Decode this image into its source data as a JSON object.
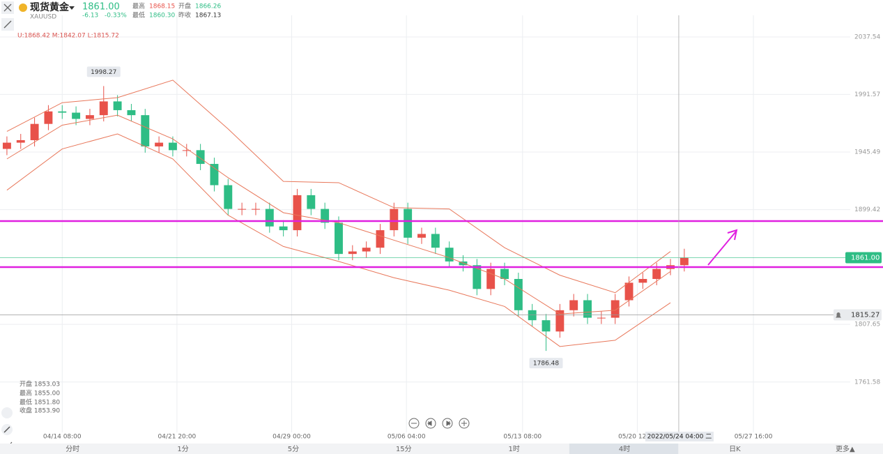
{
  "header": {
    "name": "现货黄金",
    "symbol": "XAUUSD",
    "price": "1861.00",
    "change": "-6.13",
    "change_pct": "-0.33%",
    "stats": [
      {
        "label": "最高",
        "value": "1868.15"
      },
      {
        "label": "开盘",
        "value": "1866.26"
      },
      {
        "label": "最低",
        "value": "1860.30"
      },
      {
        "label": "昨收",
        "value": "1867.13"
      }
    ]
  },
  "indicator": "U:1868.42 M:1842.07 L:1815.72",
  "ohlc_panel": [
    "开盘 1853.03",
    "最高 1855.00",
    "最低 1851.80",
    "收盘 1853.90"
  ],
  "tabs": [
    "分时",
    "1分",
    "5分",
    "15分",
    "1时",
    "4时",
    "日K",
    "更多▲"
  ],
  "active_tab": 5,
  "chart_data": {
    "type": "candlestick",
    "xlim": [
      -0.5,
      60.5
    ],
    "xticks": [
      {
        "value": 4,
        "label": "04/14 08:00"
      },
      {
        "value": 12.3,
        "label": "04/21 20:00"
      },
      {
        "value": 20.6,
        "label": "04/29 00:00"
      },
      {
        "value": 28.9,
        "label": "05/06 04:00"
      },
      {
        "value": 37.3,
        "label": "05/13 08:00"
      },
      {
        "value": 45.6,
        "label": "05/20 12:00"
      },
      {
        "value": 54,
        "label": "05/27 16:00"
      }
    ],
    "ylim": [
      1721.3,
      2054.83
    ],
    "yticks": [
      2037.54,
      1991.57,
      1945.49,
      1899.42,
      1807.65,
      1761.58
    ],
    "grid": true,
    "up_color": "#e8524a",
    "down_color": "#2ebd85",
    "candles": {
      "open": [
        1948,
        1953,
        1955,
        1968,
        1978,
        1977,
        1972,
        1975,
        1986,
        1979,
        1975,
        1950,
        1953,
        1947,
        1947,
        1936,
        1919,
        1900,
        1900,
        1900,
        1886,
        1883,
        1911,
        1900,
        1889,
        1864,
        1866,
        1869,
        1883,
        1900,
        1877,
        1880,
        1869,
        1858,
        1855,
        1836,
        1852,
        1844,
        1819,
        1811,
        1802,
        1819,
        1827,
        1813,
        1813,
        1827,
        1841,
        1844,
        1852,
        1855
      ],
      "high": [
        1958,
        1960,
        1973,
        1983,
        1983,
        1982,
        1980,
        1998.27,
        1991,
        1984,
        1980,
        1958,
        1958,
        1952,
        1952,
        1941,
        1924,
        1905,
        1905,
        1905,
        1891,
        1916,
        1916,
        1905,
        1894,
        1871,
        1874,
        1888,
        1905,
        1905,
        1885,
        1885,
        1874,
        1863,
        1860,
        1857,
        1857,
        1849,
        1824,
        1816,
        1824,
        1832,
        1832,
        1818,
        1832,
        1846,
        1849,
        1857,
        1860,
        1868.15
      ],
      "low": [
        1943,
        1948,
        1950,
        1963,
        1972,
        1967,
        1967,
        1970,
        1974,
        1970,
        1945,
        1945,
        1942,
        1942,
        1931,
        1914,
        1895,
        1895,
        1895,
        1881,
        1878,
        1878,
        1895,
        1884,
        1859,
        1859,
        1861,
        1864,
        1878,
        1872,
        1872,
        1864,
        1853,
        1850,
        1831,
        1831,
        1839,
        1814,
        1806,
        1786.48,
        1797,
        1814,
        1808,
        1808,
        1808,
        1822,
        1836,
        1839,
        1847,
        1850
      ],
      "close": [
        1953,
        1955,
        1968,
        1978,
        1977,
        1972,
        1975,
        1986,
        1979,
        1975,
        1950,
        1953,
        1947,
        1947,
        1936,
        1919,
        1900,
        1900,
        1900,
        1886,
        1883,
        1911,
        1900,
        1889,
        1864,
        1866,
        1869,
        1883,
        1900,
        1877,
        1880,
        1869,
        1858,
        1855,
        1836,
        1852,
        1844,
        1819,
        1811,
        1802,
        1819,
        1827,
        1813,
        1813,
        1827,
        1841,
        1844,
        1852,
        1855,
        1861
      ]
    },
    "bands": {
      "color": "#e8775a",
      "x": [
        0,
        4,
        8,
        12,
        16,
        20,
        24,
        28,
        32,
        36,
        40,
        44,
        48
      ],
      "upper": [
        1962,
        1985,
        1989,
        2003,
        1964,
        1922,
        1921,
        1901,
        1900,
        1869,
        1847,
        1833,
        1866
      ],
      "middle": [
        1940,
        1967,
        1975,
        1956,
        1925,
        1897,
        1889,
        1875,
        1861,
        1844,
        1816,
        1819,
        1850
      ],
      "lower": [
        1915,
        1948,
        1960,
        1940,
        1895,
        1870,
        1858,
        1845,
        1835,
        1822,
        1790,
        1795,
        1825
      ]
    },
    "hlines": [
      {
        "value": 1890.3,
        "color": "#e020e0"
      },
      {
        "value": 1853.5,
        "color": "#e020e0"
      }
    ],
    "price_line": {
      "value": 1861,
      "label": "1861.00",
      "color": "#2ebd85"
    },
    "alert_line": {
      "value": 1815.27
    },
    "crosshair": {
      "x": 48.6,
      "label": "2022/05/24 04:00 二"
    }
  }
}
